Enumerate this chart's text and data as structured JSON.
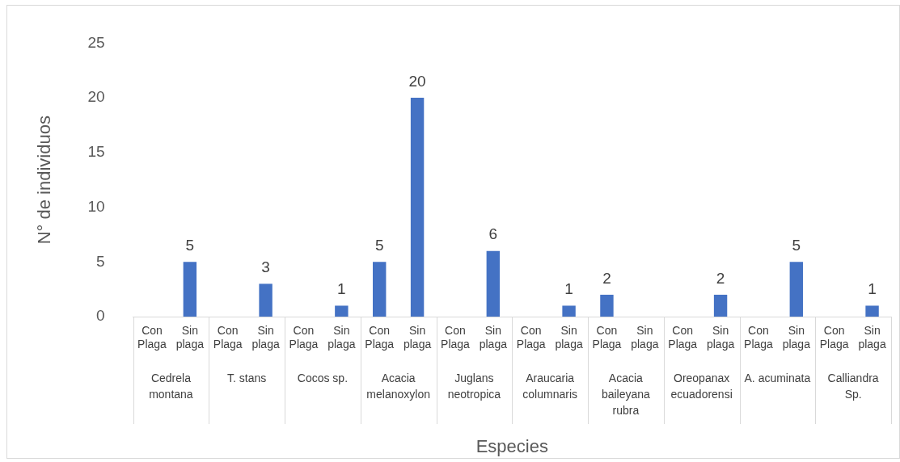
{
  "chart_data": {
    "type": "bar",
    "xlabel": "Especies",
    "ylabel": "N° de individuos",
    "categories": [
      "Con Plaga",
      "Sin plaga",
      "Con Plaga",
      "Sin plaga",
      "Con Plaga",
      "Sin plaga",
      "Con Plaga",
      "Sin plaga",
      "Con Plaga",
      "Sin plaga",
      "Con Plaga",
      "Sin plaga",
      "Con Plaga",
      "Sin plaga",
      "Con Plaga",
      "Sin plaga",
      "Con Plaga",
      "Sin plaga",
      "Con Plaga",
      "Sin plaga"
    ],
    "values": [
      0,
      5,
      0,
      3,
      0,
      1,
      5,
      20,
      0,
      6,
      0,
      1,
      2,
      0,
      0,
      2,
      0,
      5,
      0,
      1
    ],
    "value_labels": [
      null,
      "5",
      null,
      "3",
      null,
      "1",
      "5",
      "20",
      null,
      "6",
      null,
      "1",
      "2",
      null,
      null,
      "2",
      null,
      "5",
      null,
      "1"
    ],
    "color": "#4472c4",
    "ylim": [
      0,
      25
    ],
    "yticks": [
      0,
      5,
      10,
      15,
      20,
      25
    ],
    "grid": false,
    "legend": false,
    "annotations": [
      "Cedrela montana",
      "T. stans",
      "Cocos sp.",
      "Acacia melanoxylon",
      "Juglans neotropica",
      "Araucaria columnaris",
      "Acacia baileyana rubra",
      "Oreopanax ecuadorensi",
      "A. acuminata",
      "Calliandra Sp."
    ]
  }
}
